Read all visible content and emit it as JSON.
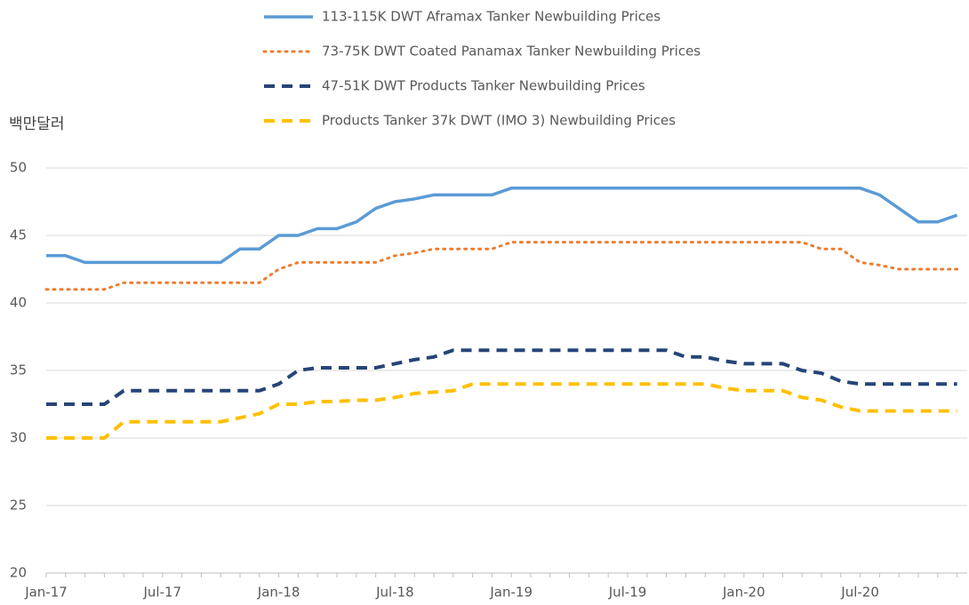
{
  "chart_data": {
    "type": "line",
    "y_label": "백만달러",
    "categories": [
      "Jan-17",
      null,
      null,
      null,
      null,
      null,
      "Jul-17",
      null,
      null,
      null,
      null,
      null,
      "Jan-18",
      null,
      null,
      null,
      null,
      null,
      "Jul-18",
      null,
      null,
      null,
      null,
      null,
      "Jan-19",
      null,
      null,
      null,
      null,
      null,
      "Jul-19",
      null,
      null,
      null,
      null,
      null,
      "Jan-20",
      null,
      null,
      null,
      null,
      null,
      "Jul-20",
      null,
      null,
      null,
      null,
      null
    ],
    "ylim": [
      20,
      50
    ],
    "yticks": [
      20,
      25,
      30,
      35,
      40,
      45,
      50
    ],
    "grid": true,
    "series": [
      {
        "name": "113-115K DWT Aframax Tanker Newbuilding Prices",
        "color": "#5b9bd5",
        "style": "solid",
        "values": [
          43.5,
          43.5,
          43,
          43,
          43,
          43,
          43,
          43,
          43,
          43,
          44,
          44,
          45,
          45,
          45.5,
          45.5,
          46,
          47,
          47.5,
          47.7,
          48,
          48,
          48,
          48,
          48.5,
          48.5,
          48.5,
          48.5,
          48.5,
          48.5,
          48.5,
          48.5,
          48.5,
          48.5,
          48.5,
          48.5,
          48.5,
          48.5,
          48.5,
          48.5,
          48.5,
          48.5,
          48.5,
          48,
          47,
          46,
          46,
          46.5
        ]
      },
      {
        "name": "73-75K DWT Coated Panamax Tanker Newbuilding Prices",
        "color": "#ed7d31",
        "style": "dotted",
        "values": [
          41,
          41,
          41,
          41,
          41.5,
          41.5,
          41.5,
          41.5,
          41.5,
          41.5,
          41.5,
          41.5,
          42.5,
          43,
          43,
          43,
          43,
          43,
          43.5,
          43.7,
          44,
          44,
          44,
          44,
          44.5,
          44.5,
          44.5,
          44.5,
          44.5,
          44.5,
          44.5,
          44.5,
          44.5,
          44.5,
          44.5,
          44.5,
          44.5,
          44.5,
          44.5,
          44.5,
          44,
          44,
          43,
          42.8,
          42.5,
          42.5,
          42.5,
          42.5
        ]
      },
      {
        "name": "47-51K DWT Products Tanker Newbuilding Prices",
        "color": "#264478",
        "style": "dashed",
        "values": [
          32.5,
          32.5,
          32.5,
          32.5,
          33.5,
          33.5,
          33.5,
          33.5,
          33.5,
          33.5,
          33.5,
          33.5,
          34,
          35,
          35.2,
          35.2,
          35.2,
          35.2,
          35.5,
          35.8,
          36,
          36.5,
          36.5,
          36.5,
          36.5,
          36.5,
          36.5,
          36.5,
          36.5,
          36.5,
          36.5,
          36.5,
          36.5,
          36,
          36,
          35.7,
          35.5,
          35.5,
          35.5,
          35,
          34.8,
          34.2,
          34,
          34,
          34,
          34,
          34,
          34
        ]
      },
      {
        "name": "Products Tanker 37k DWT (IMO 3) Newbuilding Prices",
        "color": "#ffc000",
        "style": "dashed",
        "values": [
          30,
          30,
          30,
          30,
          31.2,
          31.2,
          31.2,
          31.2,
          31.2,
          31.2,
          31.5,
          31.8,
          32.5,
          32.5,
          32.7,
          32.7,
          32.8,
          32.8,
          33,
          33.3,
          33.4,
          33.5,
          34,
          34,
          34,
          34,
          34,
          34,
          34,
          34,
          34,
          34,
          34,
          34,
          34,
          33.7,
          33.5,
          33.5,
          33.5,
          33,
          32.8,
          32.3,
          32,
          32,
          32,
          32,
          32,
          32
        ]
      }
    ]
  }
}
